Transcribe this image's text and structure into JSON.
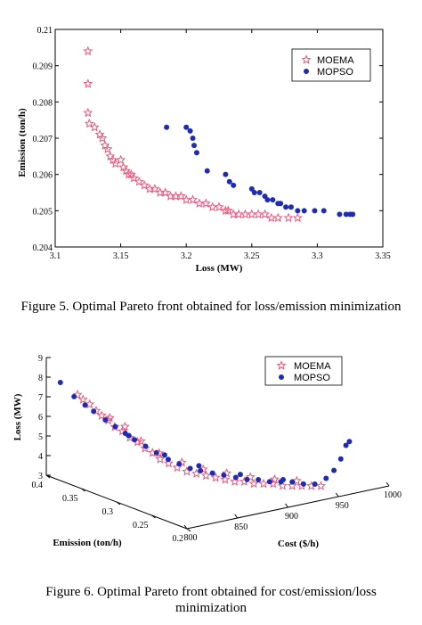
{
  "colors": {
    "moema": "#e8567a",
    "mopso": "#1f2bb0",
    "axis": "#000000"
  },
  "figure5": {
    "caption": "Figure 5.    Optimal Pareto front obtained for loss/emission minimization",
    "chart_data": {
      "type": "scatter",
      "xlabel": "Loss  (MW)",
      "ylabel": "Emission  (ton/h)",
      "xlim": [
        3.1,
        3.35
      ],
      "ylim": [
        0.204,
        0.21
      ],
      "xticks": [
        "3.1",
        "3.15",
        "3.2",
        "3.25",
        "3.3",
        "3.35"
      ],
      "yticks": [
        "0.204",
        "0.205",
        "0.206",
        "0.207",
        "0.208",
        "0.209",
        "0.21"
      ],
      "legend_position": "top-right",
      "series": [
        {
          "name": "MOEMA",
          "marker": "star",
          "x": [
            3.125,
            3.125,
            3.125,
            3.126,
            3.13,
            3.134,
            3.136,
            3.138,
            3.14,
            3.142,
            3.144,
            3.146,
            3.15,
            3.152,
            3.154,
            3.156,
            3.158,
            3.16,
            3.164,
            3.168,
            3.172,
            3.176,
            3.18,
            3.184,
            3.188,
            3.192,
            3.196,
            3.2,
            3.205,
            3.21,
            3.215,
            3.22,
            3.225,
            3.23,
            3.232,
            3.236,
            3.24,
            3.245,
            3.25,
            3.255,
            3.26,
            3.265,
            3.27,
            3.278,
            3.285
          ],
          "y": [
            0.2094,
            0.2085,
            0.2077,
            0.2074,
            0.2073,
            0.2071,
            0.207,
            0.2068,
            0.2067,
            0.2065,
            0.2064,
            0.2063,
            0.2064,
            0.2062,
            0.2061,
            0.206,
            0.206,
            0.2059,
            0.2058,
            0.2057,
            0.2056,
            0.2056,
            0.2055,
            0.2055,
            0.2054,
            0.2054,
            0.2054,
            0.2053,
            0.2053,
            0.2052,
            0.2052,
            0.2051,
            0.2051,
            0.205,
            0.205,
            0.2049,
            0.2049,
            0.2049,
            0.2049,
            0.2049,
            0.2049,
            0.2048,
            0.2048,
            0.2048,
            0.2048
          ]
        },
        {
          "name": "MOPSO",
          "marker": "dot",
          "x": [
            3.185,
            3.2,
            3.203,
            3.205,
            3.206,
            3.208,
            3.216,
            3.23,
            3.233,
            3.236,
            3.25,
            3.252,
            3.256,
            3.26,
            3.262,
            3.266,
            3.27,
            3.272,
            3.276,
            3.28,
            3.285,
            3.29,
            3.298,
            3.305,
            3.317,
            3.322,
            3.325,
            3.327
          ],
          "y": [
            0.2073,
            0.2073,
            0.2072,
            0.207,
            0.2068,
            0.2066,
            0.2061,
            0.206,
            0.2058,
            0.2057,
            0.2056,
            0.2055,
            0.2055,
            0.2054,
            0.2053,
            0.2053,
            0.2052,
            0.2052,
            0.2051,
            0.2051,
            0.205,
            0.205,
            0.205,
            0.205,
            0.2049,
            0.2049,
            0.2049,
            0.2049
          ]
        }
      ]
    }
  },
  "figure6": {
    "caption_line1": "Figure 6.    Optimal Pareto front obtained for cost/emission/loss",
    "caption_line2": "minimization",
    "chart_data": {
      "type": "scatter",
      "xlabel": "Cost  ($/h)",
      "ylabel": "Loss  (MW)",
      "zlabel": "Emission  (ton/h)",
      "cost_ticks": [
        "800",
        "850",
        "900",
        "950",
        "1000"
      ],
      "emission_ticks": [
        "0.2",
        "0.25",
        "0.3",
        "0.35",
        "0.4"
      ],
      "loss_ticks": [
        "3",
        "4",
        "5",
        "6",
        "7",
        "8",
        "9"
      ],
      "cost_range": [
        800,
        1000
      ],
      "emission_range": [
        0.2,
        0.4
      ],
      "loss_range": [
        3,
        9
      ],
      "legend_position": "top-right",
      "series": [
        {
          "name": "MOEMA",
          "marker": "star",
          "points": [
            [
              810,
              0.37,
              7.4
            ],
            [
              812,
              0.365,
              7.2
            ],
            [
              815,
              0.36,
              7.0
            ],
            [
              818,
              0.355,
              6.7
            ],
            [
              820,
              0.35,
              6.5
            ],
            [
              823,
              0.345,
              6.3
            ],
            [
              826,
              0.34,
              6.0
            ],
            [
              830,
              0.335,
              5.8
            ],
            [
              834,
              0.33,
              5.5
            ],
            [
              838,
              0.325,
              5.3
            ],
            [
              842,
              0.32,
              5.0
            ],
            [
              846,
              0.315,
              4.8
            ],
            [
              850,
              0.31,
              4.5
            ],
            [
              855,
              0.305,
              4.3
            ],
            [
              860,
              0.3,
              4.1
            ],
            [
              866,
              0.295,
              3.9
            ],
            [
              872,
              0.29,
              3.8
            ],
            [
              878,
              0.285,
              3.7
            ],
            [
              884,
              0.28,
              3.6
            ],
            [
              890,
              0.275,
              3.5
            ],
            [
              896,
              0.27,
              3.4
            ],
            [
              902,
              0.265,
              3.4
            ],
            [
              908,
              0.26,
              3.3
            ],
            [
              914,
              0.255,
              3.3
            ],
            [
              920,
              0.25,
              3.3
            ],
            [
              926,
              0.245,
              3.2
            ],
            [
              932,
              0.24,
              3.2
            ],
            [
              938,
              0.235,
              3.2
            ],
            [
              944,
              0.23,
              3.2
            ],
            [
              950,
              0.225,
              3.2
            ],
            [
              828,
              0.35,
              6.3
            ],
            [
              836,
              0.34,
              5.9
            ],
            [
              845,
              0.33,
              5.2
            ],
            [
              856,
              0.32,
              4.6
            ],
            [
              868,
              0.305,
              4.2
            ],
            [
              880,
              0.292,
              3.9
            ],
            [
              895,
              0.28,
              3.7
            ],
            [
              910,
              0.268,
              3.5
            ],
            [
              925,
              0.255,
              3.4
            ],
            [
              940,
              0.245,
              3.3
            ]
          ]
        },
        {
          "name": "MOPSO",
          "marker": "dot",
          "points": [
            [
              800,
              0.38,
              8.0
            ],
            [
              808,
              0.372,
              7.3
            ],
            [
              814,
              0.365,
              6.9
            ],
            [
              819,
              0.36,
              6.6
            ],
            [
              825,
              0.352,
              6.2
            ],
            [
              830,
              0.345,
              5.9
            ],
            [
              835,
              0.338,
              5.6
            ],
            [
              840,
              0.332,
              5.3
            ],
            [
              846,
              0.325,
              5.0
            ],
            [
              852,
              0.318,
              4.7
            ],
            [
              858,
              0.31,
              4.4
            ],
            [
              864,
              0.303,
              4.2
            ],
            [
              870,
              0.296,
              4.0
            ],
            [
              876,
              0.29,
              3.9
            ],
            [
              883,
              0.283,
              3.8
            ],
            [
              890,
              0.277,
              3.7
            ],
            [
              897,
              0.27,
              3.6
            ],
            [
              904,
              0.264,
              3.5
            ],
            [
              911,
              0.258,
              3.5
            ],
            [
              918,
              0.252,
              3.4
            ],
            [
              925,
              0.246,
              3.4
            ],
            [
              932,
              0.24,
              3.4
            ],
            [
              939,
              0.234,
              3.3
            ],
            [
              946,
              0.228,
              3.3
            ],
            [
              953,
              0.222,
              3.6
            ],
            [
              958,
              0.218,
              4.0
            ],
            [
              962,
              0.214,
              4.6
            ],
            [
              965,
              0.211,
              5.3
            ],
            [
              967,
              0.209,
              5.5
            ],
            [
              840,
              0.34,
              5.4
            ],
            [
              860,
              0.318,
              4.5
            ],
            [
              880,
              0.298,
              4.0
            ],
            [
              905,
              0.275,
              3.6
            ],
            [
              930,
              0.25,
              3.4
            ]
          ]
        }
      ]
    }
  }
}
